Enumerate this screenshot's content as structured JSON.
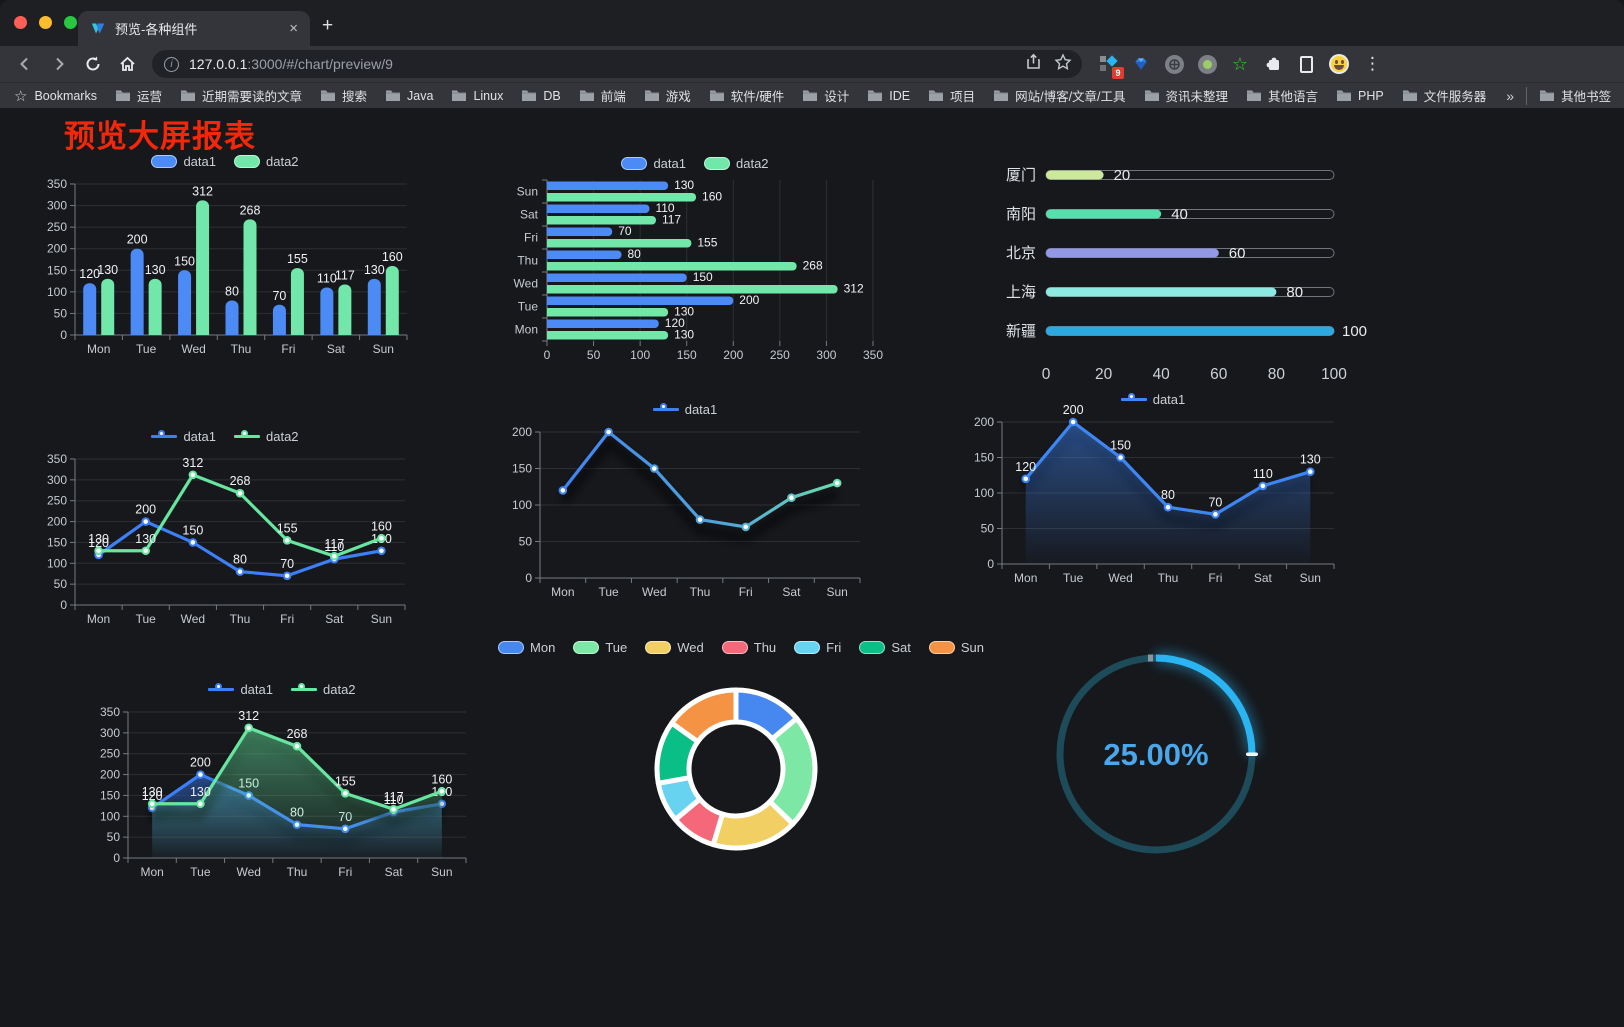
{
  "browser": {
    "traffic_lights": [
      "#ff5f57",
      "#febc2e",
      "#28c840"
    ],
    "tab": {
      "title": "预览-各种组件",
      "close_label": "×",
      "new_tab_label": "+"
    },
    "url": {
      "domain": "127.0.0.1",
      "rest": ":3000/#/chart/preview/9",
      "info_glyph": "i"
    },
    "extension_badge": "9",
    "menu_glyph": "⋮",
    "bookmarks_bar": {
      "star_glyph": "☆",
      "label": "Bookmarks",
      "items": [
        "运营",
        "近期需要读的文章",
        "搜索",
        "Java",
        "Linux",
        "DB",
        "前端",
        "游戏",
        "软件/硬件",
        "设计",
        "IDE",
        "项目",
        "网站/博客/文章/工具",
        "资讯未整理",
        "其他语言",
        "PHP",
        "文件服务器"
      ],
      "overflow_glyph": "»",
      "other_bookmarks": "其他书签"
    }
  },
  "page": {
    "title": "预览大屏报表",
    "title_color": "#f4270a",
    "background": "#16181c"
  },
  "chart_data": [
    {
      "type": "bar",
      "categories": [
        "Mon",
        "Tue",
        "Wed",
        "Thu",
        "Fri",
        "Sat",
        "Sun"
      ],
      "series": [
        {
          "name": "data1",
          "color": "#4c8bf5",
          "values": [
            120,
            200,
            150,
            80,
            70,
            110,
            130
          ]
        },
        {
          "name": "data2",
          "color": "#71e7a9",
          "values": [
            130,
            130,
            312,
            268,
            155,
            117,
            160
          ]
        }
      ],
      "ylim": [
        0,
        350
      ],
      "ytick": 50,
      "grid": true,
      "legend_position": "top",
      "value_labels": true
    },
    {
      "type": "hbar",
      "categories": [
        "Mon",
        "Tue",
        "Wed",
        "Thu",
        "Fri",
        "Sat",
        "Sun"
      ],
      "series": [
        {
          "name": "data1",
          "color": "#4c8bf5",
          "values": [
            120,
            200,
            150,
            80,
            70,
            110,
            130
          ]
        },
        {
          "name": "data2",
          "color": "#71e7a9",
          "values": [
            130,
            130,
            312,
            268,
            155,
            117,
            160
          ]
        }
      ],
      "xlim": [
        0,
        350
      ],
      "xtick": 50,
      "grid": true,
      "legend_position": "top",
      "value_labels": true
    },
    {
      "type": "capsule",
      "rows": [
        {
          "label": "厦门",
          "value": 20,
          "color": "#cbe89b"
        },
        {
          "label": "南阳",
          "value": 40,
          "color": "#56dfad"
        },
        {
          "label": "北京",
          "value": 60,
          "color": "#9297e6"
        },
        {
          "label": "上海",
          "value": 80,
          "color": "#8ceae3"
        },
        {
          "label": "新疆",
          "value": 100,
          "color": "#2da9e2"
        }
      ],
      "max": 100,
      "ticks": [
        0,
        20,
        40,
        60,
        80,
        100
      ]
    },
    {
      "type": "line",
      "categories": [
        "Mon",
        "Tue",
        "Wed",
        "Thu",
        "Fri",
        "Sat",
        "Sun"
      ],
      "series": [
        {
          "name": "data1",
          "color": "#3d7ff7",
          "values": [
            120,
            200,
            150,
            80,
            70,
            110,
            130
          ]
        },
        {
          "name": "data2",
          "color": "#67e6a0",
          "values": [
            130,
            130,
            312,
            268,
            155,
            117,
            160
          ]
        }
      ],
      "ylim": [
        0,
        350
      ],
      "ytick": 50,
      "grid": true,
      "legend_position": "top",
      "value_labels": true,
      "shadow": false
    },
    {
      "type": "line",
      "categories": [
        "Mon",
        "Tue",
        "Wed",
        "Thu",
        "Fri",
        "Sat",
        "Sun"
      ],
      "series": [
        {
          "name": "data1",
          "gradient": [
            "#3f7ef5",
            "#52a8d8",
            "#6fe8a5"
          ],
          "color": "#3f7ef5",
          "values": [
            120,
            200,
            150,
            80,
            70,
            110,
            130
          ]
        }
      ],
      "ylim": [
        0,
        200
      ],
      "ytick": 50,
      "grid": true,
      "legend_position": "top",
      "value_labels": false,
      "shadow": true
    },
    {
      "type": "line",
      "categories": [
        "Mon",
        "Tue",
        "Wed",
        "Thu",
        "Fri",
        "Sat",
        "Sun"
      ],
      "series": [
        {
          "name": "data1",
          "color": "#3f86f5",
          "area": true,
          "values": [
            120,
            200,
            150,
            80,
            70,
            110,
            130
          ]
        }
      ],
      "ylim": [
        0,
        200
      ],
      "ytick": 50,
      "grid": true,
      "legend_position": "top",
      "value_labels": true,
      "shadow": true
    },
    {
      "type": "line",
      "categories": [
        "Mon",
        "Tue",
        "Wed",
        "Thu",
        "Fri",
        "Sat",
        "Sun"
      ],
      "series": [
        {
          "name": "data1",
          "color": "#3d7ff7",
          "area": true,
          "values": [
            120,
            200,
            150,
            80,
            70,
            110,
            130
          ]
        },
        {
          "name": "data2",
          "color": "#67e6a0",
          "area": true,
          "values": [
            130,
            130,
            312,
            268,
            155,
            117,
            160
          ]
        }
      ],
      "ylim": [
        0,
        350
      ],
      "ytick": 50,
      "grid": true,
      "legend_position": "top",
      "value_labels": true,
      "shadow": true
    },
    {
      "type": "doughnut",
      "labels": [
        "Mon",
        "Tue",
        "Wed",
        "Thu",
        "Fri",
        "Sat",
        "Sun"
      ],
      "values": [
        120,
        200,
        150,
        80,
        70,
        110,
        130
      ],
      "colors": [
        "#4788f0",
        "#7de8a5",
        "#f2cf63",
        "#f5687a",
        "#67d3f0",
        "#0abf85",
        "#f59344"
      ],
      "border_color": "#ffffff",
      "legend_position": "top"
    },
    {
      "type": "gauge",
      "percent": 25,
      "label": "25.00%",
      "track_color": "#1d4b59",
      "arc_color": "#2ab5f2",
      "text_color": "#4aa7ea"
    }
  ]
}
